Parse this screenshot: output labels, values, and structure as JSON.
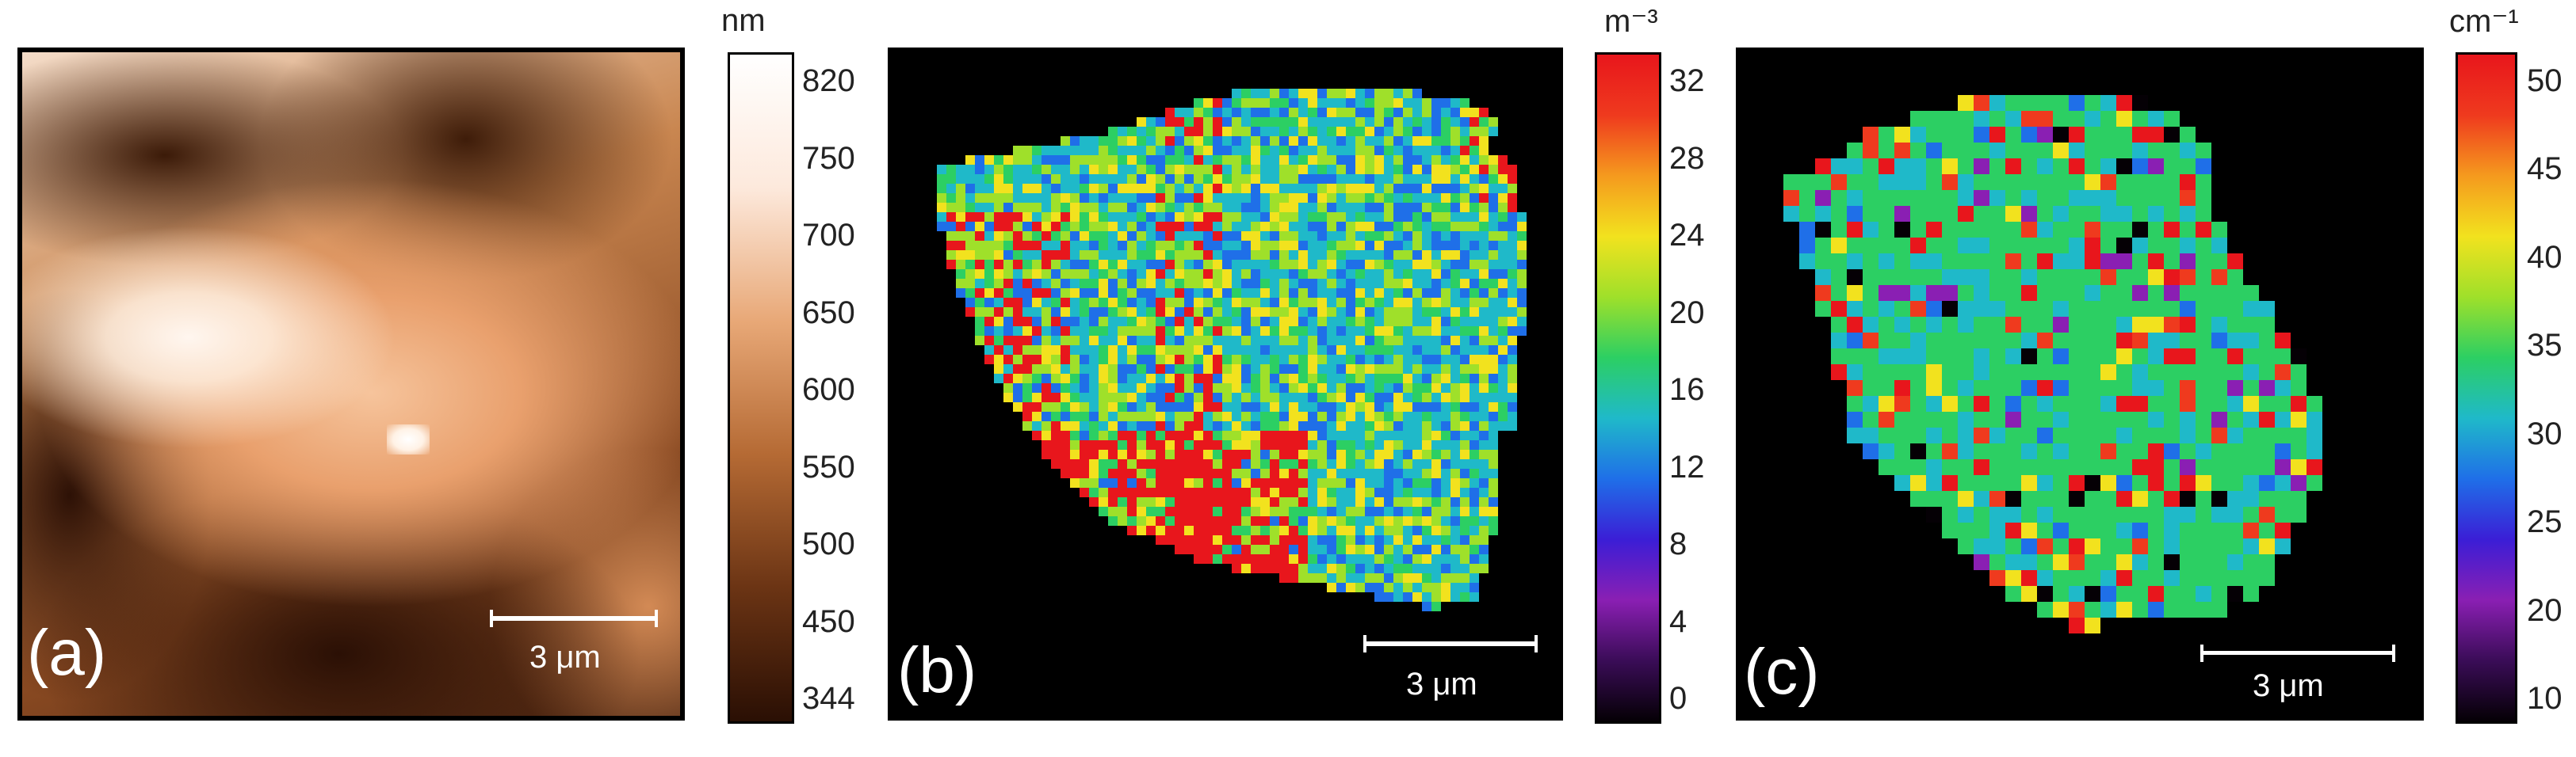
{
  "panel_a": {
    "letter": "(a)",
    "scalebar_label": "3 μm",
    "colorbar": {
      "unit": "nm",
      "ticks": [
        "820",
        "750",
        "700",
        "650",
        "600",
        "550",
        "500",
        "450",
        "344"
      ],
      "colors": [
        "#2a0f04",
        "#6b3414",
        "#b56a34",
        "#e8a877",
        "#fde9dc",
        "#ffffff"
      ]
    }
  },
  "panel_b": {
    "letter": "(b)",
    "scalebar_label": "3 μm",
    "colorbar": {
      "unit": "m⁻³",
      "ticks": [
        "32",
        "28",
        "24",
        "20",
        "16",
        "12",
        "8",
        "4",
        "0"
      ],
      "colors": [
        "#050005",
        "#3a0c57",
        "#8a1fb3",
        "#3b1ed6",
        "#1f6fe8",
        "#1fb9c9",
        "#2ccf63",
        "#9fe02a",
        "#f2e21e",
        "#f59a1e",
        "#ef3a1e",
        "#e8161c"
      ]
    }
  },
  "panel_c": {
    "letter": "(c)",
    "scalebar_label": "3 μm",
    "colorbar": {
      "unit": "cm⁻¹",
      "ticks": [
        "50",
        "45",
        "40",
        "35",
        "30",
        "25",
        "20",
        "10"
      ],
      "colors": [
        "#050005",
        "#3a0c57",
        "#8a1fb3",
        "#3b1ed6",
        "#1f6fe8",
        "#1fb9c9",
        "#2ccf63",
        "#9fe02a",
        "#f2e21e",
        "#f59a1e",
        "#ef3a1e",
        "#e8161c"
      ]
    }
  }
}
